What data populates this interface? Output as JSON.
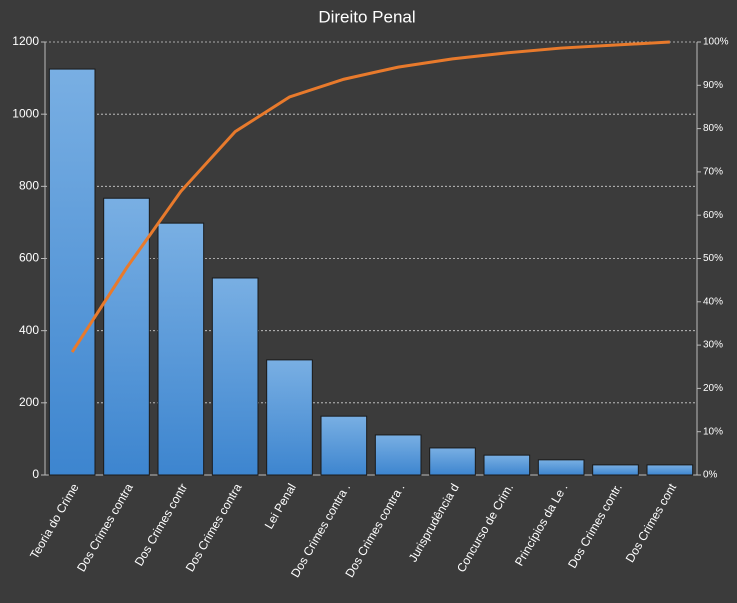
{
  "chart_data": {
    "type": "pareto",
    "title": "Direito Penal",
    "categories": [
      "Teoria do Crime",
      "Dos Crimes contra",
      "Dos Crimes contr",
      "Dos Crimes contra",
      "Lei Penal",
      "Dos Crimes contra .",
      "Dos Crimes contra .",
      "Jurisprudência d",
      "Concurso de Crim.",
      "Princípios da Le .",
      "Dos Crimes contr.",
      "Dos Crimes cont"
    ],
    "series": [
      {
        "color": "#4a90d9",
        "values": [
          1125,
          767,
          698,
          546,
          319,
          163,
          111,
          75,
          55,
          42,
          28,
          28
        ]
      },
      {
        "color": "#e87a2c",
        "axis": "y2",
        "values": [
          28.4,
          47.8,
          65.5,
          79.3,
          87.3,
          91.4,
          94.2,
          96.1,
          97.5,
          98.6,
          99.3,
          100
        ]
      }
    ],
    "ylim": [
      0,
      1200
    ],
    "yticks": [
      0,
      200,
      400,
      600,
      800,
      1000,
      1200
    ],
    "y2lim": [
      0,
      100
    ],
    "y2ticks": [
      {
        "value": 0,
        "label": "0%"
      },
      {
        "value": 10,
        "label": "10%"
      },
      {
        "value": 20,
        "label": "20%"
      },
      {
        "value": 30,
        "label": "30%"
      },
      {
        "value": 40,
        "label": "40%"
      },
      {
        "value": 50,
        "label": "50%"
      },
      {
        "value": 60,
        "label": "60%"
      },
      {
        "value": 70,
        "label": "70%"
      },
      {
        "value": 80,
        "label": "80%"
      },
      {
        "value": 90,
        "label": "90%"
      },
      {
        "value": 100,
        "label": "100%"
      }
    ],
    "grid": true
  }
}
